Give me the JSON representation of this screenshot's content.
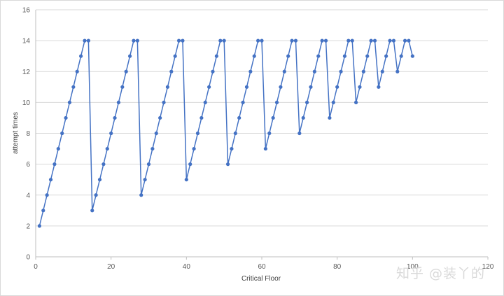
{
  "chart_data": {
    "type": "line",
    "title": "",
    "xlabel": "Critical Floor",
    "ylabel": "attempt times",
    "xlim": [
      0,
      120
    ],
    "ylim": [
      0,
      16
    ],
    "x_ticks": [
      0,
      20,
      40,
      60,
      80,
      100,
      120
    ],
    "y_ticks": [
      0,
      2,
      4,
      6,
      8,
      10,
      12,
      14,
      16
    ],
    "grid": "horizontal",
    "legend": "none",
    "series_color": "#4472C4",
    "series": [
      {
        "x": [
          1,
          2,
          3,
          4,
          5,
          6,
          7,
          8,
          9,
          10,
          11,
          12,
          13,
          14,
          15,
          16,
          17,
          18,
          19,
          20,
          21,
          22,
          23,
          24,
          25,
          26,
          27,
          28,
          29,
          30,
          31,
          32,
          33,
          34,
          35,
          36,
          37,
          38,
          39,
          40,
          41,
          42,
          43,
          44,
          45,
          46,
          47,
          48,
          49,
          50,
          51,
          52,
          53,
          54,
          55,
          56,
          57,
          58,
          59,
          60,
          61,
          62,
          63,
          64,
          65,
          66,
          67,
          68,
          69,
          70,
          71,
          72,
          73,
          74,
          75,
          76,
          77,
          78,
          79,
          80,
          81,
          82,
          83,
          84,
          85,
          86,
          87,
          88,
          89,
          90,
          91,
          92,
          93,
          94,
          95,
          96,
          97,
          98,
          99,
          100
        ],
        "values": [
          2,
          3,
          4,
          5,
          6,
          7,
          8,
          9,
          10,
          11,
          12,
          13,
          14,
          14,
          3,
          4,
          5,
          6,
          7,
          8,
          9,
          10,
          11,
          12,
          13,
          14,
          14,
          4,
          5,
          6,
          7,
          8,
          9,
          10,
          11,
          12,
          13,
          14,
          14,
          5,
          6,
          7,
          8,
          9,
          10,
          11,
          12,
          13,
          14,
          14,
          6,
          7,
          8,
          9,
          10,
          11,
          12,
          13,
          14,
          14,
          7,
          8,
          9,
          10,
          11,
          12,
          13,
          14,
          14,
          8,
          9,
          10,
          11,
          12,
          13,
          14,
          14,
          9,
          10,
          11,
          12,
          13,
          14,
          14,
          10,
          11,
          12,
          13,
          14,
          14,
          11,
          12,
          13,
          14,
          14,
          12,
          13,
          14,
          14,
          13
        ]
      }
    ]
  },
  "watermark": "知乎 @装丫的"
}
